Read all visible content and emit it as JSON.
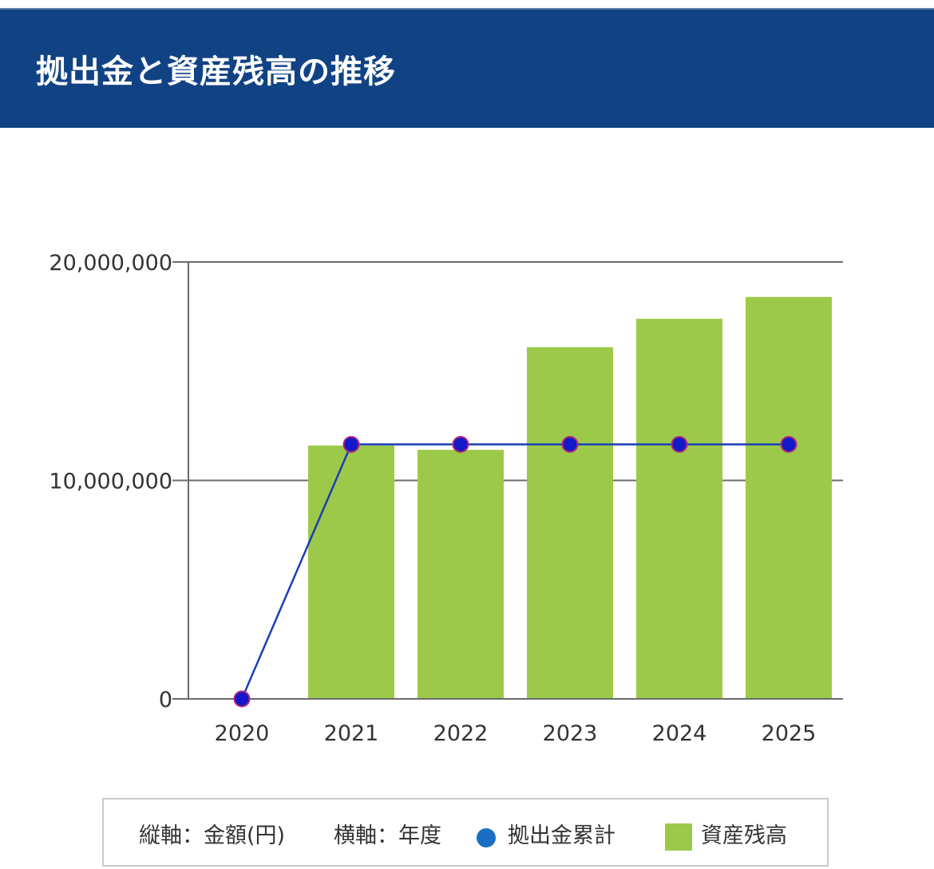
{
  "header": {
    "title": "拠出金と資産残高の推移"
  },
  "chart_data": {
    "type": "bar",
    "categories": [
      "2020",
      "2021",
      "2022",
      "2023",
      "2024",
      "2025"
    ],
    "series": [
      {
        "name": "資産残高",
        "kind": "bar",
        "color": "#9dc94a",
        "values": [
          0,
          11600000,
          11400000,
          16100000,
          17400000,
          18400000
        ]
      },
      {
        "name": "拠出金累計",
        "kind": "line",
        "color": "#1a3fb5",
        "values": [
          0,
          11650000,
          11650000,
          11650000,
          11650000,
          11650000
        ]
      }
    ],
    "ylim": [
      0,
      20000000
    ],
    "yticks": [
      0,
      10000000,
      20000000
    ],
    "ytick_labels": [
      "0",
      "10,000,000",
      "20,000,000"
    ],
    "grid": true,
    "legend_placement": "bottom"
  },
  "legend": {
    "y_axis_note": "縦軸：金額(円)",
    "x_axis_note": "横軸：年度",
    "line_label": "拠出金累計",
    "bar_label": "資産残高",
    "line_marker_color": "#1a6fc4",
    "bar_color": "#9dc94a"
  }
}
